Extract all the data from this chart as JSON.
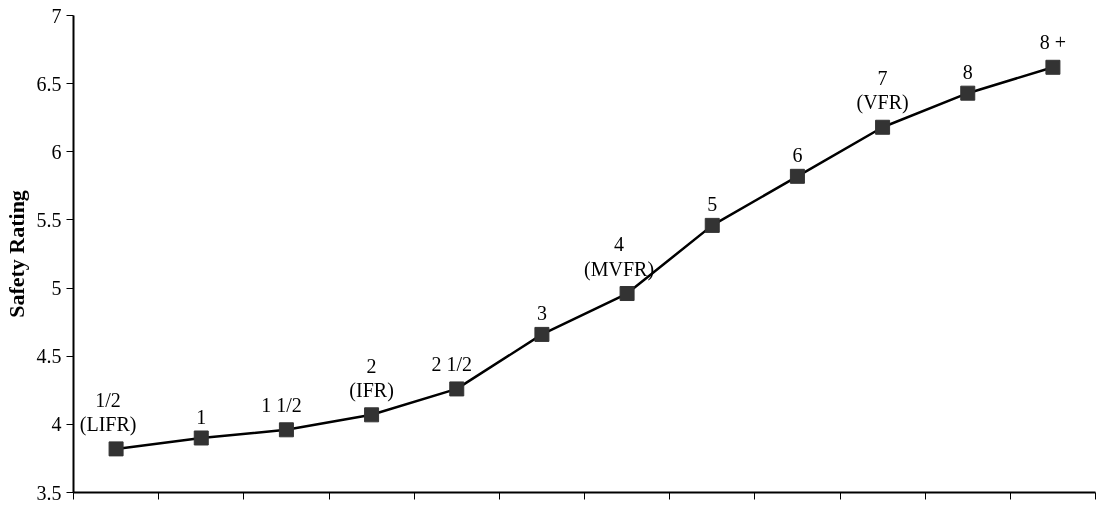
{
  "chart_data": {
    "type": "line",
    "ylabel": "Safety Rating",
    "categories": [
      null,
      null,
      null,
      null,
      null,
      null,
      null,
      null,
      null,
      null,
      null,
      null
    ],
    "series": [
      {
        "color": "#333333",
        "values": [
          3.82,
          3.9,
          3.96,
          4.07,
          4.26,
          4.66,
          4.96,
          5.46,
          5.82,
          6.18,
          6.43,
          6.62
        ]
      }
    ],
    "ylim": [
      3.5,
      7
    ],
    "yticks": [
      3.5,
      4,
      4.5,
      5,
      5.5,
      6,
      6.5,
      7
    ],
    "tick_labels": "y",
    "marker": "square",
    "line_style": "solid",
    "grid": false,
    "annotations": [
      "1/2\n(LIFR)",
      "1",
      "1 1/2",
      "2\n(IFR)",
      "2 1/2",
      "3",
      "4\n(MVFR)",
      "5",
      "6",
      "7\n(VFR)",
      "8",
      "8 +"
    ]
  }
}
